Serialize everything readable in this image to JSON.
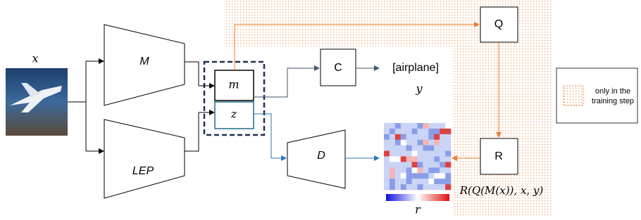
{
  "input": {
    "label": "x"
  },
  "encoders": [
    {
      "label": "M"
    },
    {
      "label": "LEP"
    }
  ],
  "latent": {
    "m": "m",
    "z": "z"
  },
  "classifier": {
    "label": "C",
    "output": "[airplane]",
    "output_symbol": "y"
  },
  "decoder": {
    "label": "D"
  },
  "heatmap": {
    "label": "r"
  },
  "q_module": {
    "label": "Q"
  },
  "r_module": {
    "label": "R",
    "formula": "R(Q(M(x)), x, y)"
  },
  "legend": {
    "lines": [
      "only in the",
      "training step"
    ]
  }
}
